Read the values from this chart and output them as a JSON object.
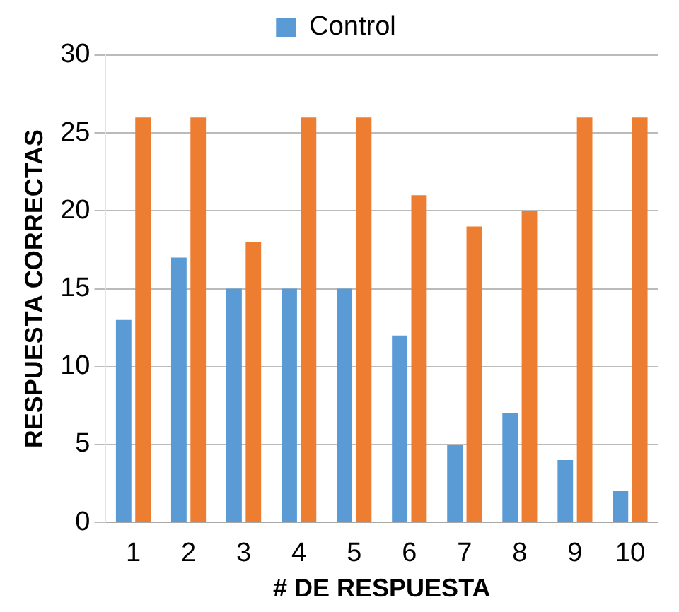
{
  "chart_data": {
    "type": "bar",
    "xlabel": "# DE RESPUESTA",
    "ylabel": "RESPUESTA CORRECTAS",
    "categories": [
      "1",
      "2",
      "3",
      "4",
      "5",
      "6",
      "7",
      "8",
      "9",
      "10"
    ],
    "series": [
      {
        "name": "Control",
        "color": "#5b9bd5",
        "values": [
          13,
          17,
          15,
          15,
          15,
          12,
          5,
          7,
          4,
          2
        ]
      },
      {
        "color": "#ed7d31",
        "values": [
          26,
          26,
          18,
          26,
          26,
          21,
          19,
          20,
          26,
          26
        ]
      }
    ],
    "ylim": [
      0,
      30
    ],
    "yticks": [
      0,
      5,
      10,
      15,
      20,
      25,
      30
    ],
    "grid": "y",
    "legend": "top"
  }
}
